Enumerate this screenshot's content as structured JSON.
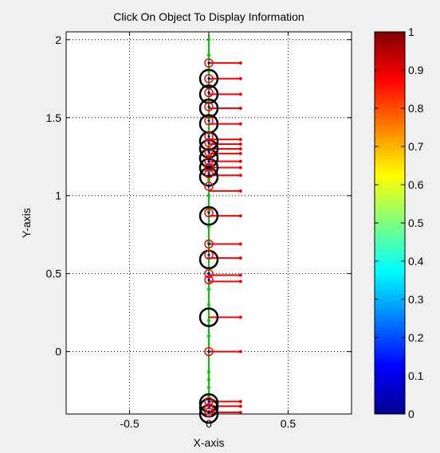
{
  "chart_data": {
    "type": "scatter",
    "title": "Click On Object To Display Information",
    "xlabel": "X-axis",
    "ylabel": "Y-axis",
    "xlim": [
      -0.9,
      0.9
    ],
    "ylim": [
      -0.4,
      2.05
    ],
    "grid": true,
    "x_ticks": [
      -0.5,
      0,
      0.5
    ],
    "x_tick_labels": [
      "-0.5",
      "0",
      "0.5"
    ],
    "y_ticks": [
      0,
      0.5,
      1,
      1.5,
      2
    ],
    "y_tick_labels": [
      "0",
      "0.5",
      "1",
      "1.5",
      "2"
    ],
    "colorbar": {
      "colormap": "jet",
      "range": [
        0,
        1
      ],
      "ticks": [
        0,
        0.1,
        0.2,
        0.3,
        0.4,
        0.5,
        0.6,
        0.7,
        0.8,
        0.9,
        1
      ],
      "tick_labels": [
        "0",
        "0.1",
        "0.2",
        "0.3",
        "0.4",
        "0.5",
        "0.6",
        "0.7",
        "0.8",
        "0.9",
        "1"
      ]
    },
    "green_line": {
      "x": 0,
      "y_range": [
        -0.35,
        2.03
      ],
      "color": "#00cc00"
    },
    "green_markers_y": [
      2.0,
      1.9,
      1.8,
      1.7,
      1.6,
      1.5,
      1.4,
      1.3,
      1.2,
      1.1,
      1.0,
      0.9,
      0.8,
      0.7,
      0.6,
      0.5,
      0.4,
      0.3,
      0.2,
      0.1,
      -0.13,
      -0.18,
      -0.23,
      -0.28
    ],
    "large_black_circles_y": [
      1.75,
      1.65,
      1.56,
      1.46,
      1.35,
      1.3,
      1.24,
      1.18,
      1.12,
      0.87,
      0.59,
      0.22,
      -0.33,
      -0.36,
      -0.4
    ],
    "small_red_circles_y": [
      1.85,
      1.75,
      1.66,
      1.57,
      1.48,
      1.38,
      1.34,
      1.28,
      1.22,
      1.18,
      1.14,
      1.06,
      0.89,
      0.69,
      0.62,
      0.5,
      0.46,
      0.0,
      -0.32,
      -0.36,
      -0.39
    ],
    "red_arrows": [
      {
        "y": 1.85,
        "length": 0.2
      },
      {
        "y": 1.75,
        "length": 0.2
      },
      {
        "y": 1.65,
        "length": 0.2
      },
      {
        "y": 1.56,
        "length": 0.2
      },
      {
        "y": 1.46,
        "length": 0.2
      },
      {
        "y": 1.36,
        "length": 0.2
      },
      {
        "y": 1.33,
        "length": 0.2
      },
      {
        "y": 1.3,
        "length": 0.2
      },
      {
        "y": 1.27,
        "length": 0.2
      },
      {
        "y": 1.22,
        "length": 0.2
      },
      {
        "y": 1.18,
        "length": 0.2
      },
      {
        "y": 1.13,
        "length": 0.2
      },
      {
        "y": 1.03,
        "length": 0.2
      },
      {
        "y": 0.87,
        "length": 0.2
      },
      {
        "y": 0.69,
        "length": 0.2
      },
      {
        "y": 0.6,
        "length": 0.2
      },
      {
        "y": 0.49,
        "length": 0.2
      },
      {
        "y": 0.45,
        "length": 0.2
      },
      {
        "y": 0.22,
        "length": 0.2
      },
      {
        "y": 0.0,
        "length": 0.2
      },
      {
        "y": -0.32,
        "length": 0.2
      },
      {
        "y": -0.35,
        "length": 0.2
      },
      {
        "y": -0.39,
        "length": 0.2
      }
    ],
    "colors": {
      "arrow": "#ff0000",
      "black_circle": "#000000",
      "red_circle": "#ff0000",
      "blue_dot": "#0000cc",
      "axes_bg": "#ffffff",
      "figure_bg": "#f0f0f0"
    }
  }
}
